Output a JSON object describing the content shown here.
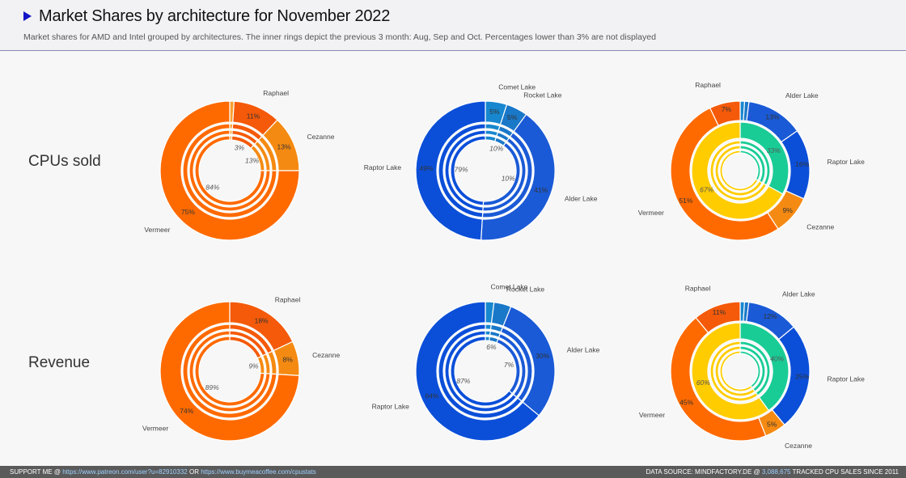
{
  "header": {
    "title": "Market Shares by architecture for November 2022",
    "subtitle": "Market shares for AMD and Intel grouped by architectures. The inner rings depict the previous 3 month: Aug, Sep and Oct. Percentages lower than 3% are not displayed"
  },
  "rows": [
    "CPUs sold",
    "Revenue"
  ],
  "footer": {
    "support": "SUPPORT ME @",
    "link1": "https://www.patreon.com/user?u=82910332",
    "or": "OR",
    "link2": "https://www.buymeacoffee.com/cpustats",
    "source": "DATA SOURCE: MINDFACTORY.DE @",
    "count": "3,088,675",
    "tracked": "TRACKED CPU SALES SINCE 2011"
  },
  "colors": {
    "Vermeer": "#ff6a00",
    "Cezanne": "#f58a12",
    "Raphael": "#f45a0a",
    "Raptor Lake": "#0b4fd9",
    "Alder Lake": "#1a5ad6",
    "Rocket Lake": "#1a78c8",
    "Comet Lake": "#1787cf",
    "Intel": "#19cc96",
    "AMD": "#ffcc00"
  },
  "chart_data": [
    {
      "type": "pie",
      "name": "AMD CPUs sold",
      "categories": [
        "Raphael",
        "Cezanne",
        "Vermeer"
      ],
      "outer_labels": [
        "Raphael",
        "Cezanne",
        "Vermeer"
      ],
      "values": [
        11,
        13,
        75
      ],
      "other": 1,
      "inner_rings_label_values": [
        3,
        13,
        84
      ],
      "inner_label_cats": [
        "Raphael",
        "Cezanne",
        "Vermeer"
      ]
    },
    {
      "type": "pie",
      "name": "Intel CPUs sold",
      "categories": [
        "Comet Lake",
        "Rocket Lake",
        "Alder Lake",
        "Raptor Lake"
      ],
      "outer_labels": [
        "Comet Lake",
        "Rocket Lake",
        "Alder Lake",
        "Raptor Lake"
      ],
      "values": [
        5,
        5,
        41,
        49
      ],
      "value_labels": [
        "5%",
        "5%",
        "41%",
        "49%"
      ],
      "inner_rings_label_values": [
        10,
        10,
        79
      ],
      "inner_label_cats": [
        "Rocket Lake",
        "Alder Lake",
        "Raptor Lake"
      ]
    },
    {
      "type": "pie",
      "name": "Brands CPUs sold",
      "categories": [
        "Intel",
        "AMD"
      ],
      "values": [
        33,
        67
      ],
      "outer": [
        {
          "cat": "Comet Lake",
          "value": 1
        },
        {
          "cat": "Rocket Lake",
          "value": 1
        },
        {
          "cat": "Alder Lake",
          "value": 13
        },
        {
          "cat": "Raptor Lake",
          "value": 16
        },
        {
          "cat": "Cezanne",
          "value": 9
        },
        {
          "cat": "Vermeer",
          "value": 51
        },
        {
          "cat": "Raphael",
          "value": 7
        }
      ],
      "outer_labels": [
        "Alder Lake",
        "Raptor Lake",
        "Cezanne",
        "Vermeer",
        "Raphael"
      ]
    },
    {
      "type": "pie",
      "name": "AMD Revenue",
      "categories": [
        "Raphael",
        "Cezanne",
        "Vermeer"
      ],
      "outer_labels": [
        "Raphael",
        "Cezanne",
        "Vermeer"
      ],
      "values": [
        18,
        8,
        74
      ],
      "inner_rings_label_values": [
        9,
        89
      ],
      "inner_label_cats": [
        "Cezanne",
        "Vermeer"
      ]
    },
    {
      "type": "pie",
      "name": "Intel Revenue",
      "categories": [
        "Comet Lake",
        "Rocket Lake",
        "Alder Lake",
        "Raptor Lake"
      ],
      "outer_labels": [
        "Comet Lake",
        "Rocket Lake",
        "Alder Lake",
        "Raptor Lake"
      ],
      "values": [
        2,
        4,
        30,
        64
      ],
      "value_labels": [
        "",
        "",
        "30%",
        "64%"
      ],
      "inner_rings_label_values": [
        6,
        7,
        87
      ],
      "inner_label_cats": [
        "Rocket Lake",
        "Alder Lake",
        "Raptor Lake"
      ]
    },
    {
      "type": "pie",
      "name": "Brands Revenue",
      "categories": [
        "Intel",
        "AMD"
      ],
      "values": [
        40,
        60
      ],
      "outer": [
        {
          "cat": "Comet Lake",
          "value": 1
        },
        {
          "cat": "Rocket Lake",
          "value": 1
        },
        {
          "cat": "Alder Lake",
          "value": 12
        },
        {
          "cat": "Raptor Lake",
          "value": 25
        },
        {
          "cat": "Cezanne",
          "value": 5
        },
        {
          "cat": "Vermeer",
          "value": 45
        },
        {
          "cat": "Raphael",
          "value": 11
        }
      ],
      "outer_labels": [
        "Alder Lake",
        "Raptor Lake",
        "Cezanne",
        "Vermeer",
        "Raphael"
      ]
    }
  ]
}
